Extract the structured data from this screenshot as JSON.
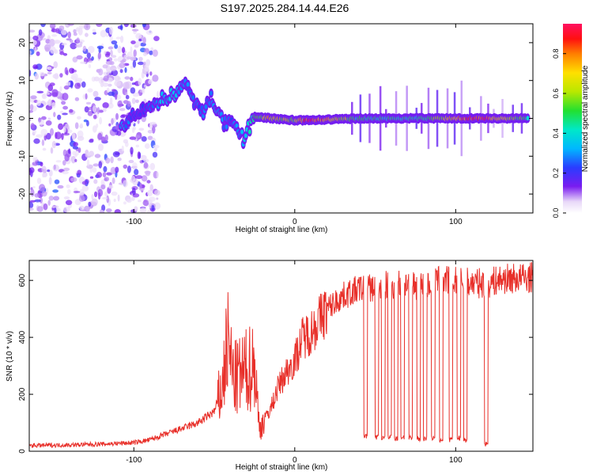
{
  "title": "S197.2025.284.14.44.E26",
  "chart_data": [
    {
      "type": "heatmap",
      "xlabel": "Height of straight line (km)",
      "ylabel": "Frequency (Hz)",
      "xlim": [
        -165,
        148
      ],
      "ylim": [
        -25,
        25
      ],
      "xticks": [
        -100,
        0,
        100
      ],
      "yticks": [
        -20,
        -10,
        0,
        10,
        20
      ],
      "colorbar": {
        "label": "Normalized spectral amplitude",
        "range": [
          0,
          0.95
        ],
        "ticks": [
          "0.0",
          "0.2",
          "0.4",
          "0.6",
          "0.8"
        ]
      },
      "ridge": [
        {
          "x": -108,
          "f": -2.5,
          "amp": 0.35
        },
        {
          "x": -100,
          "f": 0.5,
          "amp": 0.2
        },
        {
          "x": -92,
          "f": 2.5,
          "amp": 0.25
        },
        {
          "x": -85,
          "f": 4.5,
          "amp": 0.3
        },
        {
          "x": -75,
          "f": 6.5,
          "amp": 0.35
        },
        {
          "x": -68,
          "f": 9.0,
          "amp": 0.3
        },
        {
          "x": -58,
          "f": 1.0,
          "amp": 0.25
        },
        {
          "x": -52,
          "f": 6.0,
          "amp": 0.3
        },
        {
          "x": -45,
          "f": -1.0,
          "amp": 0.3
        },
        {
          "x": -38,
          "f": -2.0,
          "amp": 0.25
        },
        {
          "x": -32,
          "f": -5.5,
          "amp": 0.35
        },
        {
          "x": -25,
          "f": 0.5,
          "amp": 0.45
        },
        {
          "x": -15,
          "f": 0.0,
          "amp": 0.7
        },
        {
          "x": 0,
          "f": -0.5,
          "amp": 0.55
        },
        {
          "x": 10,
          "f": -0.5,
          "amp": 0.9
        },
        {
          "x": 40,
          "f": 0.0,
          "amp": 0.45
        },
        {
          "x": 80,
          "f": 0.0,
          "amp": 0.45
        },
        {
          "x": 113,
          "f": 0.0,
          "amp": 0.9
        },
        {
          "x": 145,
          "f": 0.0,
          "amp": 0.45
        }
      ]
    },
    {
      "type": "line",
      "color": "#e8302a",
      "xlabel": "Height of straight line (km)",
      "ylabel": "SNR (10 * v/v)",
      "xlim": [
        -165,
        148
      ],
      "ylim": [
        0,
        670
      ],
      "xticks": [
        -100,
        0,
        100
      ],
      "yticks": [
        0,
        200,
        400,
        600
      ],
      "series": [
        {
          "name": "SNR",
          "x": [
            -165,
            -140,
            -120,
            -100,
            -90,
            -80,
            -70,
            -60,
            -55,
            -50,
            -45,
            -42,
            -40,
            -38,
            -35,
            -30,
            -25,
            -22,
            -18,
            -15,
            -10,
            -5,
            0,
            5,
            10,
            20,
            30,
            40,
            50,
            60,
            70,
            80,
            90,
            100,
            110,
            120,
            130,
            148
          ],
          "values": [
            20,
            22,
            25,
            30,
            40,
            60,
            80,
            100,
            120,
            140,
            220,
            380,
            330,
            250,
            260,
            280,
            310,
            80,
            120,
            150,
            230,
            280,
            320,
            400,
            420,
            500,
            545,
            570,
            575,
            585,
            590,
            580,
            600,
            600,
            590,
            590,
            605,
            610
          ]
        }
      ],
      "dropouts": [
        {
          "from": 43,
          "to": 45,
          "level": 55
        },
        {
          "from": 50,
          "to": 52,
          "level": 50
        },
        {
          "from": 54,
          "to": 56,
          "level": 45
        },
        {
          "from": 58,
          "to": 60,
          "level": 50
        },
        {
          "from": 62,
          "to": 64,
          "level": 45
        },
        {
          "from": 66,
          "to": 68,
          "level": 50
        },
        {
          "from": 71,
          "to": 73,
          "level": 45
        },
        {
          "from": 76,
          "to": 78,
          "level": 45
        },
        {
          "from": 80,
          "to": 82,
          "level": 45
        },
        {
          "from": 85,
          "to": 87,
          "level": 45
        },
        {
          "from": 90,
          "to": 92,
          "level": 40
        },
        {
          "from": 96,
          "to": 98,
          "level": 40
        },
        {
          "from": 101,
          "to": 103,
          "level": 45
        },
        {
          "from": 105,
          "to": 107,
          "level": 40
        },
        {
          "from": 118,
          "to": 120,
          "level": 25
        }
      ]
    }
  ]
}
